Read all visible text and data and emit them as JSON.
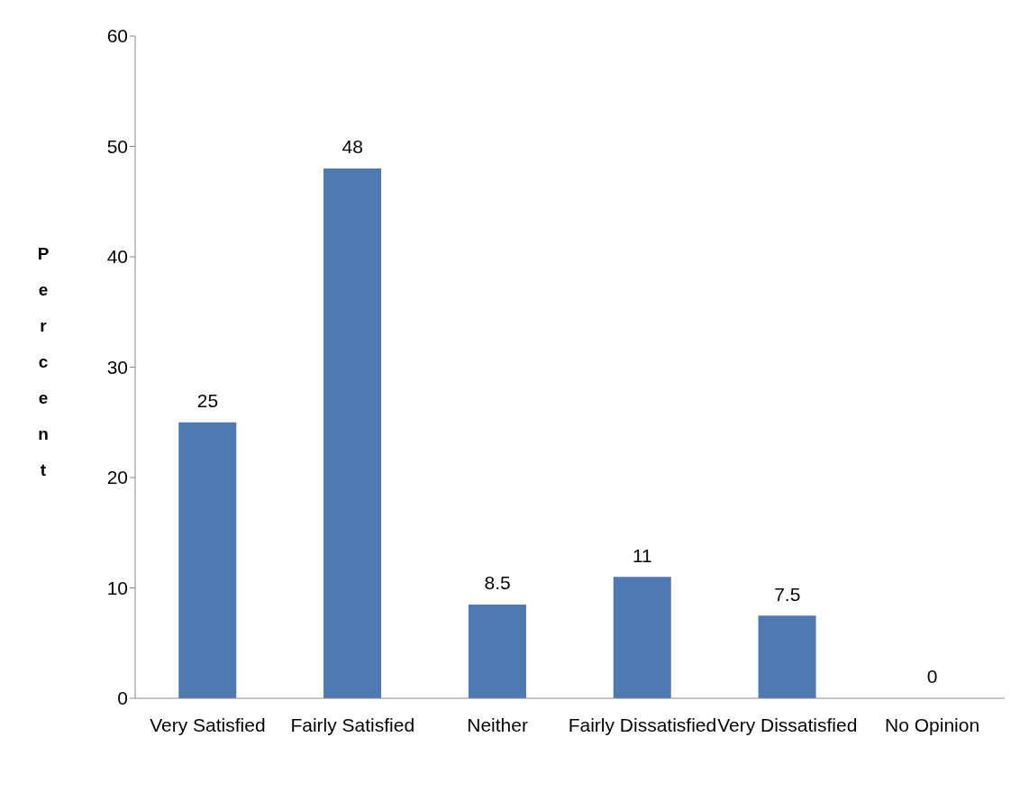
{
  "chart_data": {
    "type": "bar",
    "ylabel": "Percent",
    "categories": [
      "Very Satisfied",
      "Fairly Satisfied",
      "Neither",
      "Fairly Dissatisfied",
      "Very Dissatisfied",
      "No Opinion"
    ],
    "values": [
      25,
      48,
      8.5,
      11,
      7.5,
      0
    ],
    "color": "#4e7ab1",
    "ylim": [
      0,
      60
    ],
    "yticks": [
      0,
      10,
      20,
      30,
      40,
      50,
      60
    ],
    "grid": false,
    "legend": false,
    "data_labels": true
  }
}
